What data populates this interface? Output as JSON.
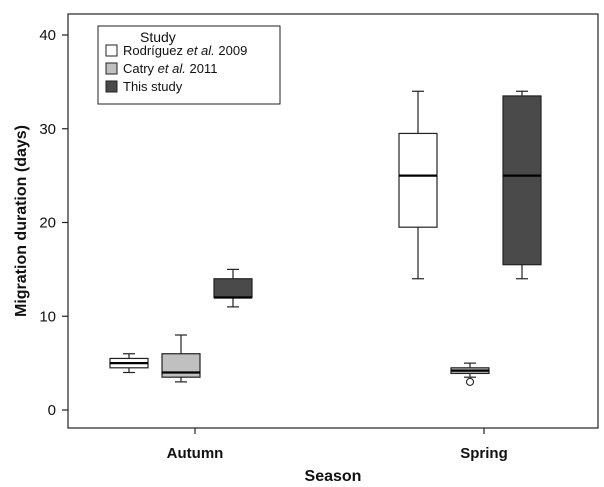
{
  "chart_data": {
    "type": "box",
    "xlabel": "Season",
    "ylabel": "Migration duration (days)",
    "ylim": [
      -2,
      42
    ],
    "yticks": [
      0,
      10,
      20,
      30,
      40
    ],
    "categories": [
      "Autumn",
      "Spring"
    ],
    "grid": false,
    "legend": {
      "title": "Study",
      "position": "top-left",
      "entries": [
        {
          "pre": "Rodríguez ",
          "ital": "et al.",
          "post": " 2009",
          "color": "#ffffff"
        },
        {
          "pre": "Catry ",
          "ital": "et al.",
          "post": " 2011",
          "color": "#c0c0c0"
        },
        {
          "pre": "This study",
          "ital": "",
          "post": "",
          "color": "#4a4a4a"
        }
      ]
    },
    "series": [
      {
        "name": "Rodríguez et al. 2009",
        "color": "#ffffff",
        "boxes": [
          {
            "category": "Autumn",
            "min": 4,
            "q1": 4.5,
            "median": 5,
            "q3": 5.5,
            "max": 6,
            "outliers": []
          },
          {
            "category": "Spring",
            "min": 14,
            "q1": 19.5,
            "median": 25,
            "q3": 29.5,
            "max": 34,
            "outliers": []
          }
        ]
      },
      {
        "name": "Catry et al. 2011",
        "color": "#c0c0c0",
        "boxes": [
          {
            "category": "Autumn",
            "min": 3,
            "q1": 3.5,
            "median": 4,
            "q3": 6,
            "max": 8,
            "outliers": []
          },
          {
            "category": "Spring",
            "min": 3.5,
            "q1": 3.9,
            "median": 4.2,
            "q3": 4.5,
            "max": 5,
            "outliers": [
              3
            ]
          }
        ]
      },
      {
        "name": "This study",
        "color": "#4a4a4a",
        "boxes": [
          {
            "category": "Autumn",
            "min": 11,
            "q1": 12,
            "median": 12,
            "q3": 14,
            "max": 15,
            "outliers": []
          },
          {
            "category": "Spring",
            "min": 14,
            "q1": 15.5,
            "median": 25,
            "q3": 33.5,
            "max": 34,
            "outliers": []
          }
        ]
      }
    ]
  }
}
